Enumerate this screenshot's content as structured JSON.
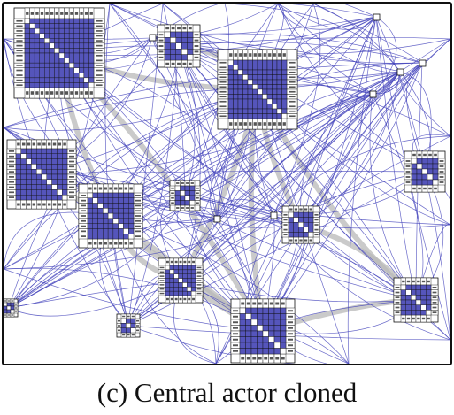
{
  "figure": {
    "caption": "(c) Central actor cloned"
  },
  "colors": {
    "node_fill": "#5555bb",
    "diagonal_fill": "#ffffff",
    "grid_line": "#111111",
    "edge_color": "#4444bb",
    "bundle_color": "#b8b8b8",
    "frame_color": "#111111"
  },
  "matrices": [
    {
      "id": "m1",
      "size": 14
    },
    {
      "id": "m2",
      "size": 5
    },
    {
      "id": "m3",
      "size": 12
    },
    {
      "id": "m4",
      "size": 10
    },
    {
      "id": "m5",
      "size": 9
    },
    {
      "id": "m6",
      "size": 4
    },
    {
      "id": "m7",
      "size": 5
    },
    {
      "id": "m8",
      "size": 5
    },
    {
      "id": "m9",
      "size": 7
    },
    {
      "id": "m10",
      "size": 6
    },
    {
      "id": "m11",
      "size": 8
    },
    {
      "id": "m12",
      "size": 3
    },
    {
      "id": "m13",
      "size": 3
    }
  ],
  "singletons": [
    {
      "id": "s1"
    },
    {
      "id": "s2"
    },
    {
      "id": "s3"
    },
    {
      "id": "s4"
    },
    {
      "id": "s5"
    },
    {
      "id": "s6"
    },
    {
      "id": "s7"
    }
  ]
}
